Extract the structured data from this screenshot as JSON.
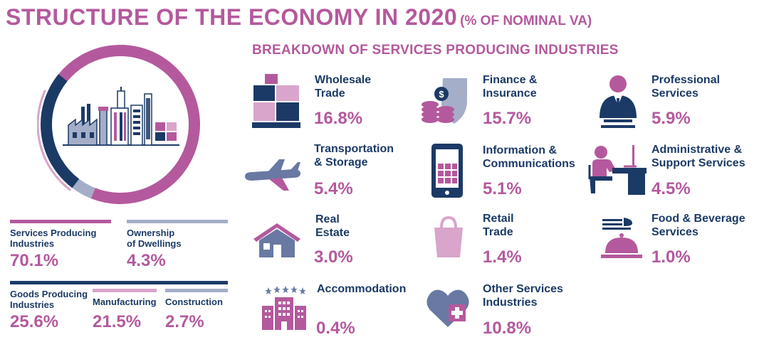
{
  "title": {
    "main": "STRUCTURE OF THE ECONOMY IN 2020",
    "sub": "(% OF NOMINAL VA)"
  },
  "colors": {
    "pink": "#b4599d",
    "navy": "#1c3a66",
    "slate": "#a4aec9",
    "lightpink": "#d9a5cb"
  },
  "overview": {
    "services": {
      "label_line1": "Services Producing",
      "label_line2": "Industries",
      "value": "70.1%"
    },
    "dwellings": {
      "label_line1": "Ownership",
      "label_line2": "of Dwellings",
      "value": "4.3%"
    },
    "goods": {
      "label_line1": "Goods Producing",
      "label_line2": "Industries",
      "value": "25.6%"
    },
    "manufacturing": {
      "label": "Manufacturing",
      "value": "21.5%"
    },
    "construction": {
      "label": "Construction",
      "value": "2.7%"
    }
  },
  "breakdown": {
    "title": "BREAKDOWN OF SERVICES PRODUCING INDUSTRIES",
    "tiles": [
      {
        "icon": "boxes-icon",
        "line1": "Wholesale",
        "line2": "Trade",
        "value": "16.8%"
      },
      {
        "icon": "coins-shield-icon",
        "line1": "Finance &",
        "line2": "Insurance",
        "value": "15.7%"
      },
      {
        "icon": "professional-person-icon",
        "line1": "Professional",
        "line2": "Services",
        "value": "5.9%"
      },
      {
        "icon": "airplane-icon",
        "line1": "Transportation",
        "line2": "& Storage",
        "value": "5.4%"
      },
      {
        "icon": "tablet-icon",
        "line1": "Information &",
        "line2": "Communications",
        "value": "5.1%"
      },
      {
        "icon": "desk-worker-icon",
        "line1": "Administrative &",
        "line2": "Support Services",
        "value": "4.5%"
      },
      {
        "icon": "house-icon",
        "line1": "Real",
        "line2": "Estate",
        "value": "3.0%"
      },
      {
        "icon": "shopping-bag-icon",
        "line1": "Retail",
        "line2": "Trade",
        "value": "1.4%"
      },
      {
        "icon": "cloche-icon",
        "line1": "Food & Beverage",
        "line2": "Services",
        "value": "1.0%"
      },
      {
        "icon": "hotel-icon",
        "line1": "Accommodation",
        "line2": "",
        "value": "0.4%"
      },
      {
        "icon": "heart-plus-icon",
        "line1": "Other Services",
        "line2": "Industries",
        "value": "10.8%"
      }
    ]
  }
}
